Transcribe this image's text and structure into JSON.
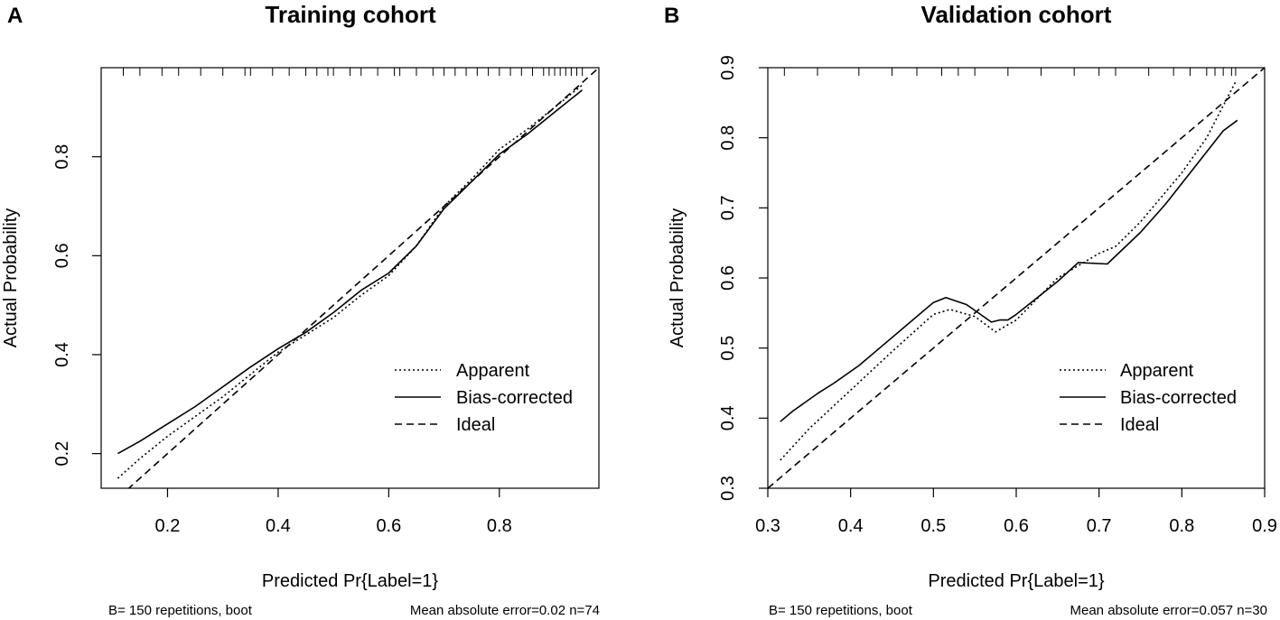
{
  "chart_data": [
    {
      "type": "line",
      "panel_label": "A",
      "title": "Training cohort",
      "xlabel": "Predicted Pr{Label=1}",
      "ylabel": "Actual Probability",
      "xlim": [
        0.08,
        0.98
      ],
      "ylim": [
        0.13,
        0.98
      ],
      "xticks": [
        0.2,
        0.4,
        0.6,
        0.8
      ],
      "yticks": [
        0.2,
        0.4,
        0.6,
        0.8
      ],
      "x_tick_labels": [
        "0.2",
        "0.4",
        "0.6",
        "0.8"
      ],
      "y_tick_labels": [
        "0.2",
        "0.4",
        "0.6",
        "0.8"
      ],
      "legend_position": "bottom-right",
      "series": [
        {
          "name": "Apparent",
          "style": "dotted",
          "x": [
            0.11,
            0.15,
            0.2,
            0.25,
            0.3,
            0.35,
            0.4,
            0.45,
            0.5,
            0.55,
            0.6,
            0.65,
            0.7,
            0.75,
            0.8,
            0.85,
            0.9,
            0.95
          ],
          "y": [
            0.15,
            0.19,
            0.235,
            0.275,
            0.315,
            0.36,
            0.405,
            0.44,
            0.475,
            0.52,
            0.56,
            0.62,
            0.7,
            0.755,
            0.815,
            0.855,
            0.9,
            0.945
          ]
        },
        {
          "name": "Bias-corrected",
          "style": "solid",
          "x": [
            0.11,
            0.15,
            0.2,
            0.25,
            0.3,
            0.35,
            0.4,
            0.45,
            0.5,
            0.55,
            0.6,
            0.65,
            0.7,
            0.75,
            0.8,
            0.85,
            0.9,
            0.95
          ],
          "y": [
            0.2,
            0.225,
            0.26,
            0.295,
            0.335,
            0.375,
            0.412,
            0.445,
            0.485,
            0.53,
            0.565,
            0.62,
            0.695,
            0.75,
            0.805,
            0.845,
            0.89,
            0.935
          ]
        },
        {
          "name": "Ideal",
          "style": "dashed",
          "x": [
            0.08,
            0.98
          ],
          "y": [
            0.08,
            0.98
          ]
        }
      ],
      "rug_x": [
        0.12,
        0.15,
        0.19,
        0.22,
        0.26,
        0.3,
        0.34,
        0.35,
        0.39,
        0.42,
        0.45,
        0.47,
        0.49,
        0.5,
        0.53,
        0.55,
        0.58,
        0.61,
        0.62,
        0.65,
        0.68,
        0.7,
        0.72,
        0.74,
        0.76,
        0.78,
        0.8,
        0.82,
        0.84,
        0.86,
        0.88,
        0.89,
        0.9,
        0.91,
        0.92,
        0.93,
        0.94,
        0.95
      ],
      "footnote_left": "B= 150 repetitions, boot",
      "footnote_right": "Mean absolute error=0.02 n=74"
    },
    {
      "type": "line",
      "panel_label": "B",
      "title": "Validation cohort",
      "xlabel": "Predicted Pr{Label=1}",
      "ylabel": "Actual Probability",
      "xlim": [
        0.3,
        0.9
      ],
      "ylim": [
        0.3,
        0.9
      ],
      "xticks": [
        0.3,
        0.4,
        0.5,
        0.6,
        0.7,
        0.8,
        0.9
      ],
      "yticks": [
        0.3,
        0.4,
        0.5,
        0.6,
        0.7,
        0.8,
        0.9
      ],
      "x_tick_labels": [
        "0.3",
        "0.4",
        "0.5",
        "0.6",
        "0.7",
        "0.8",
        "0.9"
      ],
      "y_tick_labels": [
        "0.3",
        "0.4",
        "0.5",
        "0.6",
        "0.7",
        "0.8",
        "0.9"
      ],
      "legend_position": "bottom-right",
      "series": [
        {
          "name": "Apparent",
          "style": "dotted",
          "x": [
            0.315,
            0.35,
            0.4,
            0.45,
            0.5,
            0.52,
            0.55,
            0.575,
            0.6,
            0.65,
            0.7,
            0.72,
            0.75,
            0.8,
            0.83,
            0.865
          ],
          "y": [
            0.34,
            0.385,
            0.44,
            0.495,
            0.548,
            0.555,
            0.545,
            0.523,
            0.54,
            0.6,
            0.635,
            0.645,
            0.68,
            0.75,
            0.8,
            0.88
          ]
        },
        {
          "name": "Bias-corrected",
          "style": "solid",
          "x": [
            0.315,
            0.33,
            0.36,
            0.38,
            0.41,
            0.44,
            0.47,
            0.5,
            0.515,
            0.54,
            0.57,
            0.58,
            0.59,
            0.6,
            0.65,
            0.675,
            0.71,
            0.75,
            0.78,
            0.82,
            0.85,
            0.867
          ],
          "y": [
            0.395,
            0.41,
            0.435,
            0.45,
            0.475,
            0.505,
            0.535,
            0.565,
            0.572,
            0.562,
            0.537,
            0.54,
            0.54,
            0.548,
            0.595,
            0.622,
            0.62,
            0.665,
            0.705,
            0.765,
            0.81,
            0.825
          ]
        },
        {
          "name": "Ideal",
          "style": "dashed",
          "x": [
            0.3,
            0.9
          ],
          "y": [
            0.3,
            0.9
          ]
        }
      ],
      "rug_x": [
        0.32,
        0.36,
        0.41,
        0.45,
        0.48,
        0.51,
        0.53,
        0.55,
        0.59,
        0.63,
        0.67,
        0.7,
        0.72,
        0.76,
        0.79,
        0.81,
        0.83,
        0.84,
        0.85,
        0.86,
        0.865
      ],
      "footnote_left": "B= 150 repetitions, boot",
      "footnote_right": "Mean absolute error=0.057 n=30"
    }
  ]
}
